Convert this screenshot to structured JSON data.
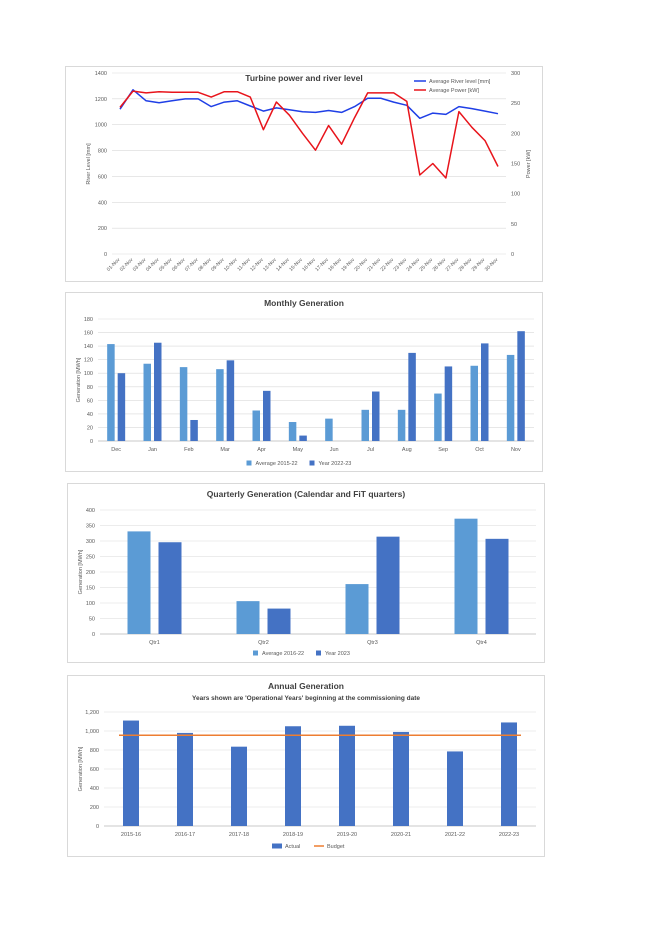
{
  "colors": {
    "blue_light": "#5B9BD5",
    "blue_dark": "#4472C4",
    "red": "#E8141B",
    "orange": "#ED7D31",
    "grid": "#D9D9D9",
    "text": "#595959",
    "title": "#404040"
  },
  "charts": {
    "turbine": {
      "title": "Turbine power and river level",
      "ylabel_left": "River Level [mm]",
      "ylabel_right": "Power [kW]",
      "yticks_left": [
        "0",
        "200",
        "400",
        "600",
        "800",
        "1000",
        "1200",
        "1400"
      ],
      "yticks_right": [
        "0",
        "50",
        "100",
        "150",
        "200",
        "250",
        "300"
      ],
      "legend": [
        "Average River level [mm]",
        "Average Power [kW]"
      ]
    },
    "monthly": {
      "title": "Monthly Generation",
      "ylabel": "Generation [MWh]",
      "yticks": [
        "0",
        "20",
        "40",
        "60",
        "80",
        "100",
        "120",
        "140",
        "160",
        "180"
      ],
      "legend": [
        "Average 2015-22",
        "Year 2022-23"
      ]
    },
    "quarterly": {
      "title": "Quarterly Generation (Calendar and FiT quarters)",
      "ylabel": "Generation [MWh]",
      "yticks": [
        "0",
        "50",
        "100",
        "150",
        "200",
        "250",
        "300",
        "350",
        "400"
      ],
      "legend": [
        "Average 2016-22",
        "Year 2023"
      ]
    },
    "annual": {
      "title": "Annual Generation",
      "subtitle": "Years shown are 'Operational Years' beginning at the commissioning date",
      "ylabel": "Generation [MWh]",
      "yticks": [
        "0",
        "200",
        "400",
        "600",
        "800",
        "1,000",
        "1,200"
      ],
      "legend": [
        "Actual",
        "Budget"
      ]
    }
  },
  "chart_data": [
    {
      "type": "line",
      "title": "Turbine power and river level",
      "x": [
        "01-Nov",
        "02-Nov",
        "03-Nov",
        "04-Nov",
        "05-Nov",
        "06-Nov",
        "07-Nov",
        "08-Nov",
        "09-Nov",
        "10-Nov",
        "11-Nov",
        "12-Nov",
        "13-Nov",
        "14-Nov",
        "15-Nov",
        "16-Nov",
        "17-Nov",
        "18-Nov",
        "19-Nov",
        "20-Nov",
        "21-Nov",
        "22-Nov",
        "23-Nov",
        "24-Nov",
        "25-Nov",
        "26-Nov",
        "27-Nov",
        "28-Nov",
        "29-Nov",
        "30-Nov"
      ],
      "ylabel": "River Level [mm]",
      "y2label": "Power [kW]",
      "ylim": [
        0,
        1400
      ],
      "y2lim": [
        0,
        300
      ],
      "legend_position": "top-right",
      "series": [
        {
          "name": "Average River level [mm]",
          "axis": "left",
          "values": [
            1120,
            1270,
            1185,
            1170,
            1185,
            1200,
            1200,
            1140,
            1175,
            1185,
            1145,
            1105,
            1130,
            1115,
            1100,
            1095,
            1110,
            1095,
            1140,
            1205,
            1205,
            1175,
            1150,
            1050,
            1090,
            1080,
            1140,
            1125,
            1105,
            1085
          ]
        },
        {
          "name": "Average Power [kW]",
          "axis": "right",
          "values": [
            243,
            270,
            267,
            269,
            268,
            268,
            268,
            260,
            269,
            269,
            260,
            206,
            252,
            230,
            200,
            172,
            213,
            182,
            226,
            267,
            267,
            267,
            253,
            131,
            150,
            126,
            236,
            210,
            188,
            145
          ]
        }
      ]
    },
    {
      "type": "bar",
      "title": "Monthly Generation",
      "ylabel": "Generation [MWh]",
      "ylim": [
        0,
        180
      ],
      "legend_position": "bottom",
      "categories": [
        "Dec",
        "Jan",
        "Feb",
        "Mar",
        "Apr",
        "May",
        "Jun",
        "Jul",
        "Aug",
        "Sep",
        "Oct",
        "Nov"
      ],
      "series": [
        {
          "name": "Average 2015-22",
          "values": [
            143,
            114,
            109,
            106,
            45,
            28,
            33,
            46,
            46,
            70,
            111,
            127
          ]
        },
        {
          "name": "Year 2022-23",
          "values": [
            100,
            145,
            31,
            119,
            74,
            8,
            0,
            73,
            130,
            110,
            144,
            162
          ]
        }
      ]
    },
    {
      "type": "bar",
      "title": "Quarterly Generation (Calendar and FiT quarters)",
      "ylabel": "Generation [MWh]",
      "ylim": [
        0,
        400
      ],
      "legend_position": "bottom",
      "categories": [
        "Qtr1",
        "Qtr2",
        "Qtr3",
        "Qtr4"
      ],
      "series": [
        {
          "name": "Average 2016-22",
          "values": [
            331,
            106,
            161,
            372
          ]
        },
        {
          "name": "Year 2023",
          "values": [
            296,
            82,
            314,
            307
          ]
        }
      ]
    },
    {
      "type": "bar",
      "title": "Annual Generation",
      "subtitle": "Years shown are 'Operational Years' beginning at the commissioning date",
      "ylabel": "Generation [MWh]",
      "ylim": [
        0,
        1200
      ],
      "legend_position": "bottom",
      "categories": [
        "2015-16",
        "2016-17",
        "2017-18",
        "2018-19",
        "2019-20",
        "2020-21",
        "2021-22",
        "2022-23"
      ],
      "series": [
        {
          "name": "Actual",
          "values": [
            1110,
            980,
            835,
            1050,
            1055,
            990,
            785,
            1090
          ]
        },
        {
          "name": "Budget",
          "type": "line",
          "values": [
            955,
            955,
            955,
            955,
            955,
            955,
            955,
            955
          ]
        }
      ]
    }
  ]
}
